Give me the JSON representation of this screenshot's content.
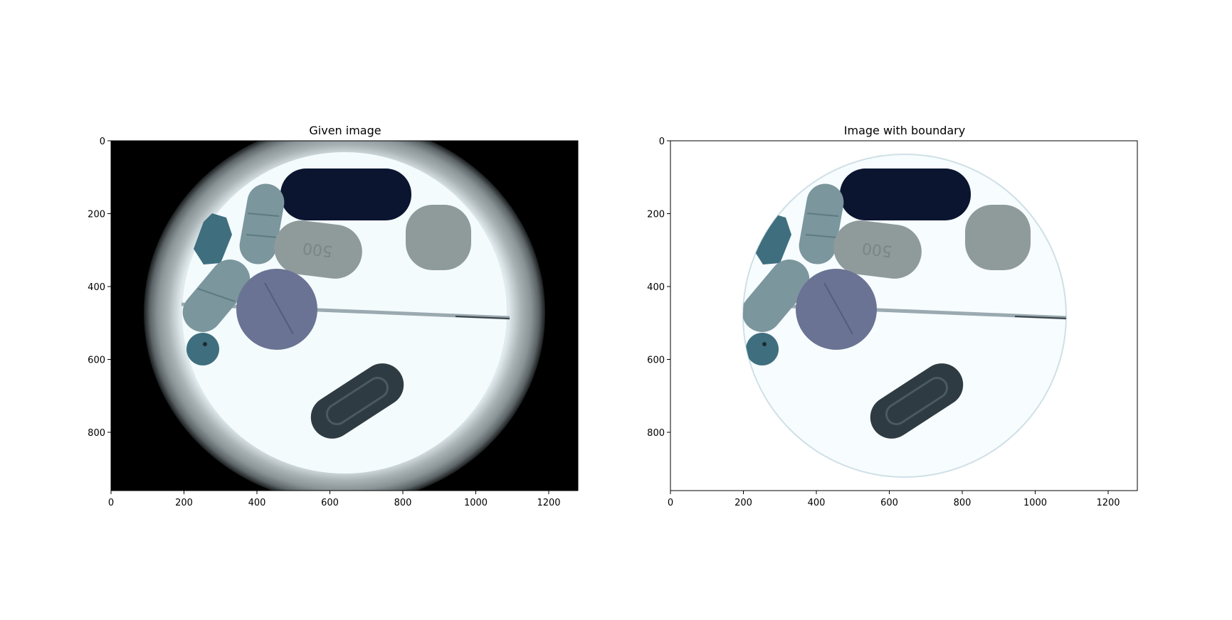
{
  "panels": [
    {
      "title": "Given image",
      "x_ticks": [
        "0",
        "200",
        "400",
        "600",
        "800",
        "1000",
        "1200"
      ],
      "y_ticks": [
        "0",
        "200",
        "400",
        "600",
        "800"
      ],
      "background": "#000000"
    },
    {
      "title": "Image with boundary",
      "x_ticks": [
        "0",
        "200",
        "400",
        "600",
        "800",
        "1000",
        "1200"
      ],
      "y_ticks": [
        "0",
        "200",
        "400",
        "600",
        "800"
      ],
      "background": "#ffffff"
    }
  ],
  "pill_text": "500",
  "colors": {
    "dark_navy": "#0b1530",
    "slate_gray": "#8f9b9a",
    "teal_blue": "#3f6f7e",
    "blue_gray": "#6b7394",
    "charcoal": "#2f3b42",
    "light_pill": "#8aa0a4",
    "dish_light": "#eef8fb"
  }
}
